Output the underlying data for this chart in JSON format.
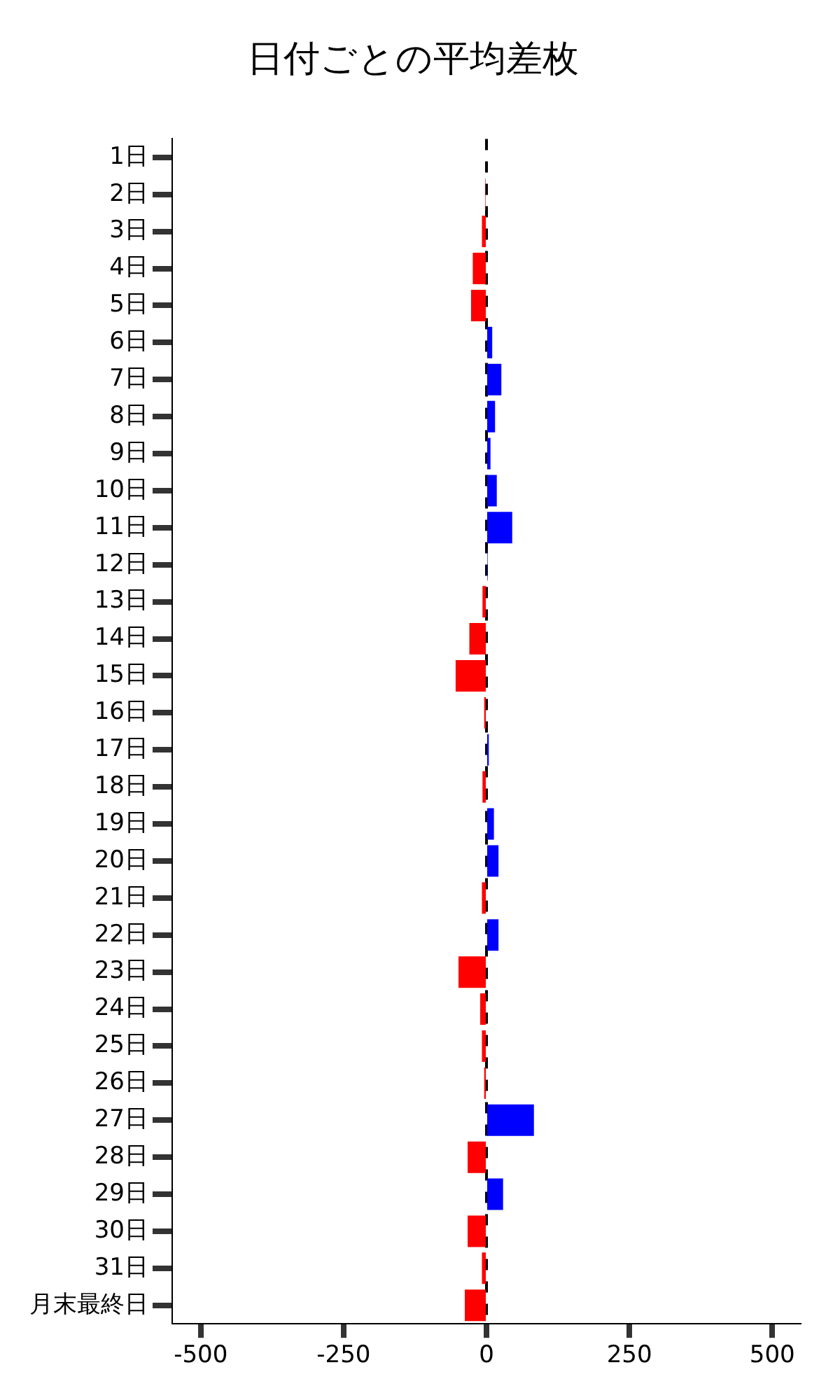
{
  "chart_data": {
    "type": "bar",
    "orientation": "horizontal",
    "title": "日付ごとの平均差枚",
    "categories": [
      "1日",
      "2日",
      "3日",
      "4日",
      "5日",
      "6日",
      "7日",
      "8日",
      "9日",
      "10日",
      "11日",
      "12日",
      "13日",
      "14日",
      "15日",
      "16日",
      "17日",
      "18日",
      "19日",
      "20日",
      "21日",
      "22日",
      "23日",
      "24日",
      "25日",
      "26日",
      "27日",
      "28日",
      "29日",
      "30日",
      "31日",
      "月末最終日"
    ],
    "values": [
      0,
      -2,
      -8,
      -24,
      -27,
      10,
      26,
      15,
      7,
      18,
      45,
      2,
      -7,
      -30,
      -54,
      -4,
      4,
      -7,
      13,
      21,
      -8,
      21,
      -49,
      -11,
      -8,
      -4,
      83,
      -33,
      29,
      -33,
      -8,
      -38
    ],
    "colors": [
      "#0000ff",
      "#ff0000",
      "#ff0000",
      "#ff0000",
      "#ff0000",
      "#0000ff",
      "#0000ff",
      "#0000ff",
      "#0000ff",
      "#0000ff",
      "#0000ff",
      "#0000ff",
      "#ff0000",
      "#ff0000",
      "#ff0000",
      "#ff0000",
      "#0000ff",
      "#ff0000",
      "#0000ff",
      "#0000ff",
      "#ff0000",
      "#0000ff",
      "#ff0000",
      "#ff0000",
      "#ff0000",
      "#ff0000",
      "#0000ff",
      "#ff0000",
      "#0000ff",
      "#ff0000",
      "#ff0000",
      "#ff0000"
    ],
    "xlim": [
      -550,
      550
    ],
    "xticks": [
      -500,
      -250,
      0,
      250,
      500
    ],
    "ref_lines": [
      {
        "axis": "x",
        "value": 0,
        "color": "#000000",
        "line_style": "dashed"
      }
    ],
    "grid": false,
    "legend": false
  }
}
